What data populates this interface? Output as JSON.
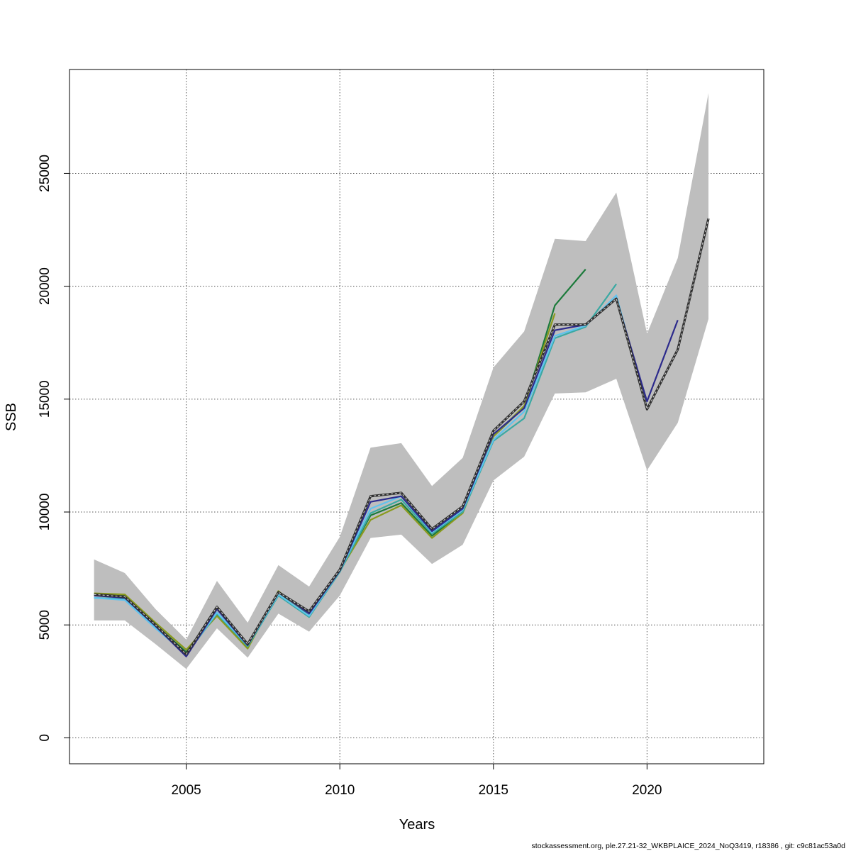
{
  "chart_data": {
    "type": "line",
    "title": "",
    "xlabel": "Years",
    "ylabel": "SSB",
    "xlim": [
      2001.2,
      2023.8
    ],
    "ylim": [
      -1150,
      29600
    ],
    "xticks": [
      2005,
      2010,
      2015,
      2020
    ],
    "yticks": [
      0,
      5000,
      10000,
      15000,
      20000,
      25000
    ],
    "grid": true,
    "confidence_band": {
      "x": [
        2002,
        2003,
        2004,
        2005,
        2006,
        2007,
        2008,
        2009,
        2010,
        2011,
        2012,
        2013,
        2014,
        2015,
        2016,
        2017,
        2018,
        2019,
        2020,
        2021,
        2022
      ],
      "upper": [
        7900,
        7300,
        5700,
        4350,
        6950,
        5100,
        7650,
        6700,
        8900,
        12850,
        13050,
        11150,
        12400,
        16400,
        18000,
        22100,
        22000,
        24150,
        17900,
        21250,
        28550
      ],
      "lower": [
        5200,
        5200,
        4150,
        3050,
        4850,
        3550,
        5500,
        4700,
        6300,
        8850,
        9000,
        7700,
        8550,
        11400,
        12450,
        15250,
        15300,
        15900,
        11850,
        13950,
        18550
      ],
      "color": "#bebebe"
    },
    "series": [
      {
        "color": "#1b7a3a",
        "x": [
          2002,
          2003,
          2004,
          2005,
          2006,
          2007,
          2008,
          2009,
          2010,
          2011,
          2012,
          2013,
          2014,
          2015,
          2016,
          2017,
          2018
        ],
        "values": [
          6350,
          6300,
          5000,
          3800,
          5450,
          4000,
          6450,
          5400,
          7400,
          9850,
          10400,
          8950,
          10000,
          13350,
          14650,
          19150,
          20750
        ]
      },
      {
        "color": "#8a9a1f",
        "x": [
          2002,
          2003,
          2004,
          2005,
          2006,
          2007,
          2008,
          2009,
          2010,
          2011,
          2012,
          2013,
          2014,
          2015,
          2016,
          2017
        ],
        "values": [
          6400,
          6350,
          5100,
          3900,
          5400,
          3950,
          6500,
          5350,
          7400,
          9650,
          10300,
          8850,
          9950,
          13350,
          14700,
          18800
        ]
      },
      {
        "color": "#3aa9a3",
        "x": [
          2002,
          2003,
          2004,
          2005,
          2006,
          2007,
          2008,
          2009,
          2010,
          2011,
          2012,
          2013,
          2014,
          2015,
          2016,
          2017,
          2018,
          2019
        ],
        "values": [
          6200,
          6150,
          4900,
          3700,
          5500,
          4050,
          6300,
          5350,
          7350,
          9950,
          10550,
          9050,
          10000,
          13150,
          14150,
          17700,
          18200,
          20100
        ]
      },
      {
        "color": "#5fc3ef",
        "x": [
          2002,
          2003,
          2004,
          2005,
          2006,
          2007,
          2008,
          2009,
          2010,
          2011,
          2012,
          2013,
          2014,
          2015,
          2016,
          2017,
          2018,
          2019,
          2020
        ],
        "values": [
          6200,
          6100,
          4850,
          3700,
          5550,
          4100,
          6350,
          5400,
          7400,
          10150,
          10700,
          9100,
          10100,
          13200,
          14450,
          17800,
          18250,
          19600,
          14600
        ]
      },
      {
        "color": "#2c2a8c",
        "x": [
          2002,
          2003,
          2004,
          2005,
          2006,
          2007,
          2008,
          2009,
          2010,
          2011,
          2012,
          2013,
          2014,
          2015,
          2016,
          2017,
          2018,
          2019,
          2020,
          2021
        ],
        "values": [
          6300,
          6200,
          4950,
          3600,
          5700,
          4100,
          6450,
          5500,
          7400,
          10450,
          10700,
          9150,
          10150,
          13450,
          14600,
          18050,
          18300,
          19450,
          14900,
          18500
        ]
      },
      {
        "color": "#303030",
        "dashed_overlay": true,
        "x": [
          2002,
          2003,
          2004,
          2005,
          2006,
          2007,
          2008,
          2009,
          2010,
          2011,
          2012,
          2013,
          2014,
          2015,
          2016,
          2017,
          2018,
          2019,
          2020,
          2021,
          2022
        ],
        "values": [
          6350,
          6250,
          5000,
          3700,
          5800,
          4150,
          6450,
          5600,
          7450,
          10700,
          10850,
          9250,
          10250,
          13600,
          14900,
          18300,
          18300,
          19450,
          14550,
          17200,
          23000
        ]
      }
    ]
  },
  "footer": "stockassessment.org, ple.27.21-32_WKBPLAICE_2024_NoQ3419, r18386 , git: c9c81ac53a0d"
}
